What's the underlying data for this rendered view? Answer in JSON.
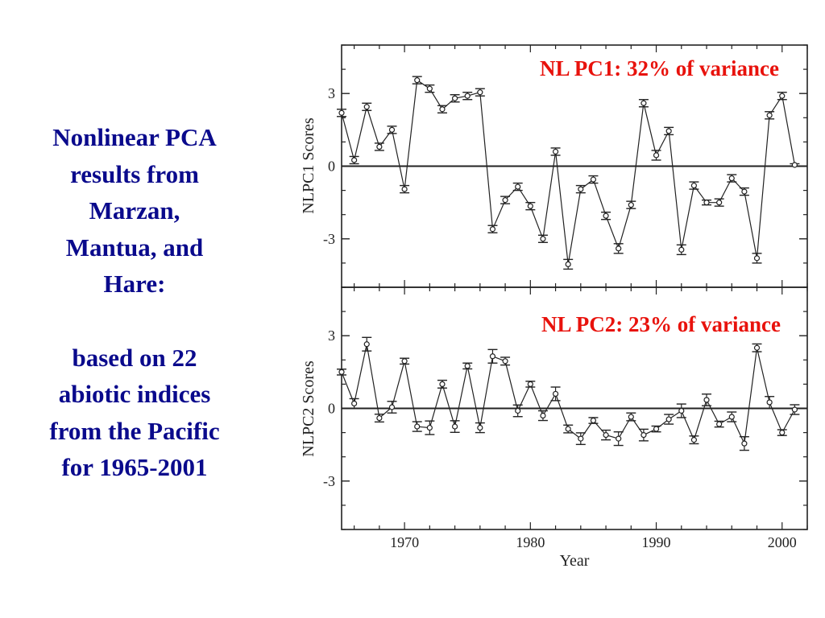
{
  "slide": {
    "heading_lines": [
      "Nonlinear PCA",
      "results from",
      "Marzan,",
      "Mantua, and",
      "Hare:"
    ],
    "detail_lines": [
      "based on 22",
      "abiotic indices",
      "from the Pacific",
      "for 1965-2001"
    ]
  },
  "colors": {
    "heading": "#0a0a8c",
    "annotation": "#e8120c",
    "axis": "#222222"
  },
  "chart_data": [
    {
      "type": "line",
      "panel": "top",
      "annotation": "NL PC1: 32% of variance",
      "ylabel": "NLPC1 Scores",
      "xlabel": "",
      "xlim": [
        1965,
        2002
      ],
      "ylim": [
        -5,
        5
      ],
      "yticks": [
        3,
        0,
        -3
      ],
      "ytick_labels": [
        "3",
        "0",
        "-3"
      ],
      "zero_line": true,
      "x": [
        1965,
        1966,
        1967,
        1968,
        1969,
        1970,
        1971,
        1972,
        1973,
        1974,
        1975,
        1976,
        1977,
        1978,
        1979,
        1980,
        1981,
        1982,
        1983,
        1984,
        1985,
        1986,
        1987,
        1988,
        1989,
        1990,
        1991,
        1992,
        1993,
        1994,
        1995,
        1996,
        1997,
        1998,
        1999,
        2000,
        2001
      ],
      "values": [
        2.2,
        0.25,
        2.45,
        0.8,
        1.5,
        -0.95,
        3.55,
        3.2,
        2.35,
        2.8,
        2.9,
        3.05,
        -2.6,
        -1.4,
        -0.85,
        -1.65,
        -3.0,
        0.6,
        -4.05,
        -0.95,
        -0.55,
        -2.05,
        -3.4,
        -1.6,
        2.6,
        0.45,
        1.45,
        -3.45,
        -0.8,
        -1.5,
        -1.5,
        -0.5,
        -1.05,
        -3.8,
        2.1,
        2.9,
        0.05
      ],
      "errors": [
        0.15,
        0.15,
        0.15,
        0.15,
        0.15,
        0.15,
        0.15,
        0.15,
        0.15,
        0.15,
        0.15,
        0.15,
        0.15,
        0.15,
        0.15,
        0.15,
        0.15,
        0.15,
        0.2,
        0.15,
        0.15,
        0.15,
        0.2,
        0.15,
        0.15,
        0.2,
        0.15,
        0.2,
        0.15,
        0.1,
        0.15,
        0.15,
        0.15,
        0.2,
        0.15,
        0.15,
        0.05
      ]
    },
    {
      "type": "line",
      "panel": "bottom",
      "annotation": "NL PC2: 23% of variance",
      "ylabel": "NLPC2 Scores",
      "xlabel": "Year",
      "xlim": [
        1965,
        2002
      ],
      "ylim": [
        -5,
        5
      ],
      "yticks": [
        3,
        0,
        -3
      ],
      "ytick_labels": [
        "3",
        "0",
        "-3"
      ],
      "xticks": [
        1970,
        1980,
        1990,
        2000
      ],
      "xtick_labels": [
        "1970",
        "1980",
        "1990",
        "2000"
      ],
      "zero_line": true,
      "x": [
        1965,
        1966,
        1967,
        1968,
        1969,
        1970,
        1971,
        1972,
        1973,
        1974,
        1975,
        1976,
        1977,
        1978,
        1979,
        1980,
        1981,
        1982,
        1983,
        1984,
        1985,
        1986,
        1987,
        1988,
        1989,
        1990,
        1991,
        1992,
        1993,
        1994,
        1995,
        1996,
        1997,
        1998,
        1999,
        2000,
        2001
      ],
      "values": [
        1.5,
        0.2,
        2.65,
        -0.4,
        0.05,
        1.95,
        -0.75,
        -0.8,
        1.0,
        -0.75,
        1.75,
        -0.8,
        2.15,
        1.95,
        -0.1,
        1.0,
        -0.3,
        0.6,
        -0.85,
        -1.25,
        -0.5,
        -1.1,
        -1.25,
        -0.35,
        -1.1,
        -0.85,
        -0.45,
        -0.1,
        -1.3,
        0.35,
        -0.65,
        -0.35,
        -1.45,
        2.5,
        0.25,
        -1.0,
        -0.05
      ]
    }
  ]
}
